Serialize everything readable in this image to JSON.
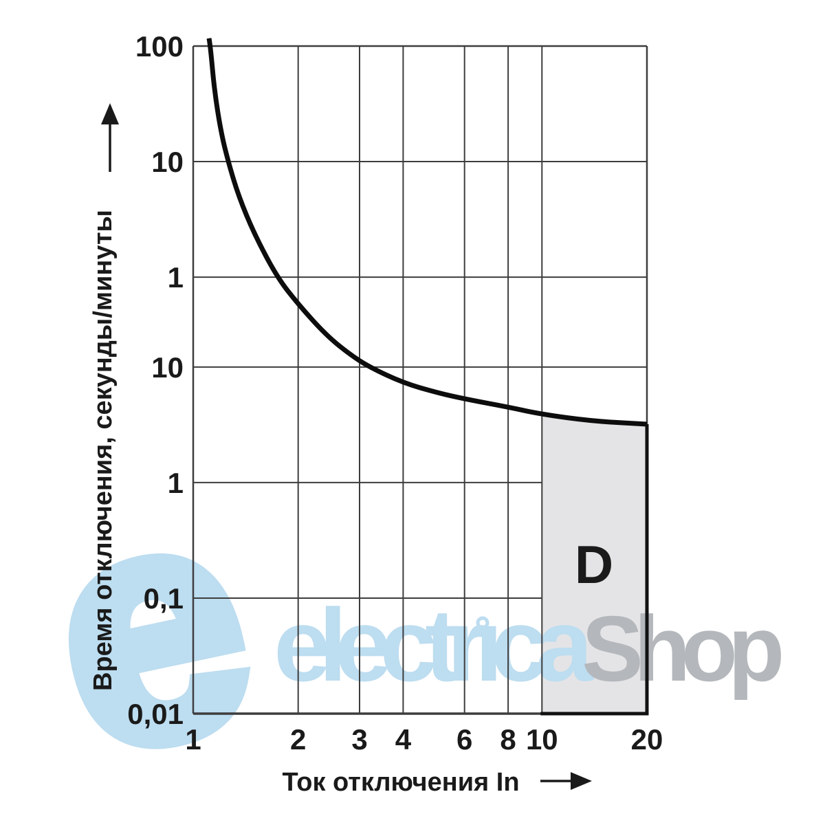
{
  "page": {
    "background": "#ffffff"
  },
  "watermark": {
    "logo_letter": "e",
    "brand_left": "electrica",
    "brand_right": "Shop",
    "blue": "#bdddf0",
    "gray": "#b4b7bb"
  },
  "chart_data": {
    "type": "line",
    "title": "",
    "legend": "none",
    "grid": {
      "on": true,
      "color": "#3d3d3d"
    },
    "x_axis": {
      "label": "Ток отключения In",
      "scale": "log",
      "range": [
        1,
        20
      ],
      "ticks": [
        {
          "value": 1,
          "label": "1"
        },
        {
          "value": 2,
          "label": "2"
        },
        {
          "value": 3,
          "label": "3"
        },
        {
          "value": 4,
          "label": "4"
        },
        {
          "value": 6,
          "label": "6"
        },
        {
          "value": 8,
          "label": "8"
        },
        {
          "value": 10,
          "label": "10"
        },
        {
          "value": 20,
          "label": "20"
        }
      ]
    },
    "y_axis": {
      "label": "Время отключения, секунды/минуты",
      "scale": "log",
      "units": "seconds",
      "range": [
        0.01,
        6000
      ],
      "ticks": [
        {
          "value": 6000,
          "label": "100"
        },
        {
          "value": 600,
          "label": "10"
        },
        {
          "value": 60,
          "label": "1"
        },
        {
          "value": 10,
          "label": "10"
        },
        {
          "value": 1,
          "label": "1"
        },
        {
          "value": 0.1,
          "label": "0,1"
        },
        {
          "value": 0.01,
          "label": "0,01"
        }
      ]
    },
    "series": [
      {
        "name": "D",
        "color": "#0d0d0d",
        "points": [
          [
            1.11,
            7000
          ],
          [
            1.12,
            6000
          ],
          [
            1.15,
            2500
          ],
          [
            1.2,
            1100
          ],
          [
            1.26,
            600
          ],
          [
            1.35,
            300
          ],
          [
            1.5,
            140
          ],
          [
            1.74,
            60
          ],
          [
            2.0,
            35
          ],
          [
            2.4,
            19
          ],
          [
            2.8,
            13
          ],
          [
            3.2,
            10
          ],
          [
            4.0,
            7.3
          ],
          [
            5.0,
            6.0
          ],
          [
            6.0,
            5.3
          ],
          [
            8.0,
            4.5
          ],
          [
            10,
            3.9
          ],
          [
            14,
            3.4
          ],
          [
            20,
            3.2
          ]
        ]
      }
    ],
    "region": {
      "label": "D",
      "x_from": 10,
      "x_to": 20,
      "fill": "#e4e4e6",
      "border": "#111111"
    }
  }
}
